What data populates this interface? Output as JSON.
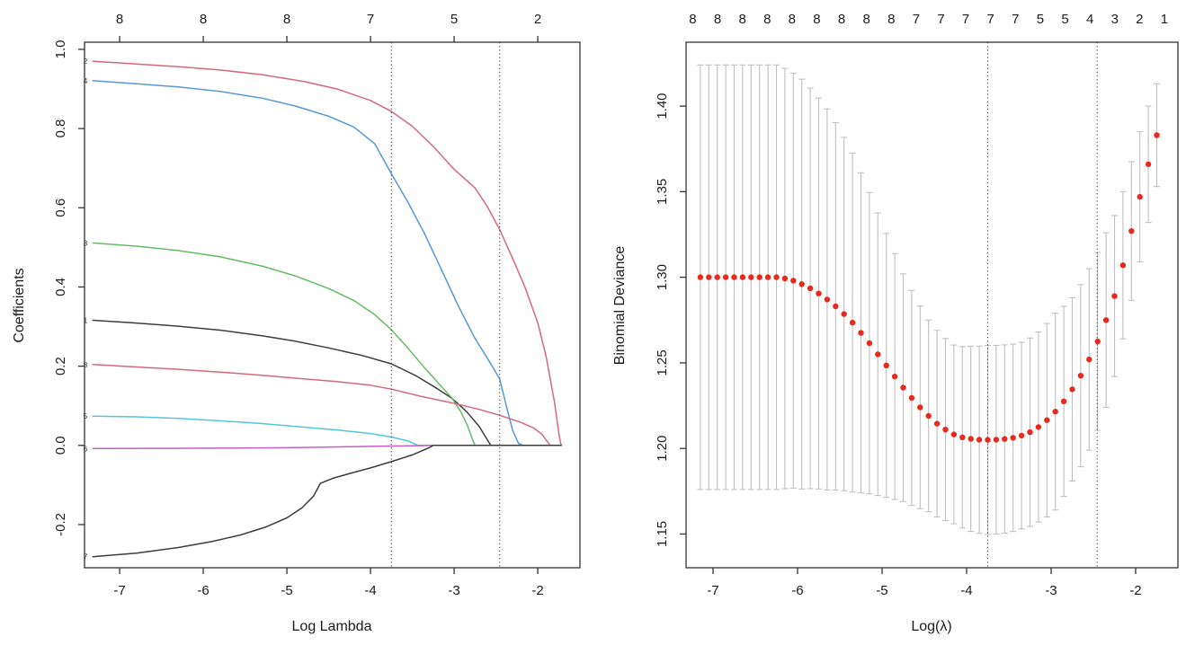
{
  "figure": {
    "background": "#ffffff",
    "description": "LASSO regression: coefficient profiles and cross-validation curve"
  },
  "chart_data": [
    {
      "type": "line",
      "name": "coefficient-paths",
      "xlabel": "Log Lambda",
      "ylabel": "Coefficients",
      "xlim": [
        -7.42,
        -1.495
      ],
      "ylim": [
        -0.309,
        1.018
      ],
      "x_ticks": [
        -7,
        -6,
        -5,
        -4,
        -3,
        -2
      ],
      "x_tick_labels": [
        "-7",
        "-6",
        "-5",
        "-4",
        "-3",
        "-2"
      ],
      "y_ticks": [
        1.0,
        0.8,
        0.6,
        0.4,
        0.2,
        0.0,
        -0.2
      ],
      "y_tick_labels": [
        "1.0",
        "0.8",
        "0.6",
        "0.4",
        "0.2",
        "0.0",
        "-0.2"
      ],
      "top_axis_labels": [
        "8",
        "8",
        "8",
        "7",
        "5",
        "2"
      ],
      "vlines": [
        -3.75,
        -2.455
      ],
      "vline_color": "#4a4a4a",
      "series": [
        {
          "label": "1",
          "color": "#3d3d3d",
          "points": [
            [
              -7.32,
              0.316
            ],
            [
              -6.8,
              0.309
            ],
            [
              -6.3,
              0.301
            ],
            [
              -5.8,
              0.291
            ],
            [
              -5.3,
              0.277
            ],
            [
              -4.9,
              0.263
            ],
            [
              -4.5,
              0.246
            ],
            [
              -4.1,
              0.227
            ],
            [
              -3.75,
              0.206
            ],
            [
              -3.45,
              0.175
            ],
            [
              -3.2,
              0.143
            ],
            [
              -3.02,
              0.118
            ],
            [
              -2.85,
              0.085
            ],
            [
              -2.7,
              0.048
            ],
            [
              -2.6,
              0.013
            ],
            [
              -2.56,
              0.0
            ],
            [
              -1.72,
              0.0
            ]
          ]
        },
        {
          "label": "2",
          "color": "#d4687e",
          "points": [
            [
              -7.32,
              0.97
            ],
            [
              -6.8,
              0.963
            ],
            [
              -6.3,
              0.956
            ],
            [
              -5.8,
              0.948
            ],
            [
              -5.3,
              0.936
            ],
            [
              -4.8,
              0.919
            ],
            [
              -4.4,
              0.9
            ],
            [
              -4.0,
              0.871
            ],
            [
              -3.75,
              0.843
            ],
            [
              -3.5,
              0.806
            ],
            [
              -3.25,
              0.755
            ],
            [
              -3.0,
              0.697
            ],
            [
              -2.75,
              0.65
            ],
            [
              -2.6,
              0.602
            ],
            [
              -2.455,
              0.545
            ],
            [
              -2.3,
              0.472
            ],
            [
              -2.15,
              0.398
            ],
            [
              -2.0,
              0.31
            ],
            [
              -1.9,
              0.225
            ],
            [
              -1.8,
              0.11
            ],
            [
              -1.74,
              0.02
            ],
            [
              -1.72,
              0.0
            ]
          ]
        },
        {
          "label": "3",
          "color": "#66bb66",
          "points": [
            [
              -7.32,
              0.511
            ],
            [
              -6.8,
              0.503
            ],
            [
              -6.3,
              0.492
            ],
            [
              -5.8,
              0.476
            ],
            [
              -5.3,
              0.453
            ],
            [
              -4.9,
              0.428
            ],
            [
              -4.5,
              0.396
            ],
            [
              -4.2,
              0.366
            ],
            [
              -3.95,
              0.33
            ],
            [
              -3.75,
              0.292
            ],
            [
              -3.55,
              0.245
            ],
            [
              -3.35,
              0.195
            ],
            [
              -3.15,
              0.148
            ],
            [
              -3.02,
              0.118
            ],
            [
              -2.92,
              0.085
            ],
            [
              -2.84,
              0.05
            ],
            [
              -2.78,
              0.015
            ],
            [
              -2.75,
              0.0
            ],
            [
              -1.72,
              0.0
            ]
          ]
        },
        {
          "label": "4",
          "color": "#5599d8",
          "points": [
            [
              -7.32,
              0.921
            ],
            [
              -6.8,
              0.913
            ],
            [
              -6.3,
              0.905
            ],
            [
              -5.8,
              0.894
            ],
            [
              -5.3,
              0.877
            ],
            [
              -4.9,
              0.857
            ],
            [
              -4.5,
              0.831
            ],
            [
              -4.2,
              0.804
            ],
            [
              -3.95,
              0.762
            ],
            [
              -3.75,
              0.686
            ],
            [
              -3.55,
              0.613
            ],
            [
              -3.35,
              0.533
            ],
            [
              -3.15,
              0.443
            ],
            [
              -2.95,
              0.352
            ],
            [
              -2.75,
              0.27
            ],
            [
              -2.55,
              0.202
            ],
            [
              -2.455,
              0.168
            ],
            [
              -2.38,
              0.103
            ],
            [
              -2.3,
              0.038
            ],
            [
              -2.23,
              0.005
            ],
            [
              -2.18,
              0.0
            ],
            [
              -1.72,
              0.0
            ]
          ]
        },
        {
          "label": "5",
          "color": "#55c6d8",
          "points": [
            [
              -7.32,
              0.074
            ],
            [
              -6.8,
              0.072
            ],
            [
              -6.3,
              0.068
            ],
            [
              -5.8,
              0.062
            ],
            [
              -5.3,
              0.055
            ],
            [
              -4.8,
              0.046
            ],
            [
              -4.4,
              0.039
            ],
            [
              -4.0,
              0.03
            ],
            [
              -3.75,
              0.021
            ],
            [
              -3.55,
              0.011
            ],
            [
              -3.43,
              0.0
            ],
            [
              -1.72,
              0.0
            ]
          ]
        },
        {
          "label": "6",
          "color": "#c45ec4",
          "points": [
            [
              -7.32,
              -0.008
            ],
            [
              -6.5,
              -0.0075
            ],
            [
              -5.8,
              -0.007
            ],
            [
              -5.0,
              -0.006
            ],
            [
              -4.4,
              -0.004
            ],
            [
              -3.9,
              -0.002
            ],
            [
              -3.5,
              -0.001
            ],
            [
              -3.25,
              0.0
            ],
            [
              -1.72,
              0.0
            ]
          ]
        },
        {
          "label": "8",
          "color": "#d4687e",
          "points": [
            [
              -7.32,
              0.204
            ],
            [
              -6.8,
              0.198
            ],
            [
              -6.3,
              0.192
            ],
            [
              -5.8,
              0.185
            ],
            [
              -5.3,
              0.177
            ],
            [
              -4.8,
              0.168
            ],
            [
              -4.4,
              0.161
            ],
            [
              -4.0,
              0.152
            ],
            [
              -3.75,
              0.142
            ],
            [
              -3.4,
              0.124
            ],
            [
              -3.0,
              0.106
            ],
            [
              -2.7,
              0.091
            ],
            [
              -2.455,
              0.076
            ],
            [
              -2.2,
              0.058
            ],
            [
              -2.05,
              0.044
            ],
            [
              -1.95,
              0.028
            ],
            [
              -1.88,
              0.008
            ],
            [
              -1.85,
              0.0
            ],
            [
              -1.72,
              0.0
            ]
          ]
        },
        {
          "label": "7",
          "color": "#3d3d3d",
          "points": [
            [
              -7.32,
              -0.281
            ],
            [
              -6.8,
              -0.272
            ],
            [
              -6.3,
              -0.258
            ],
            [
              -5.9,
              -0.243
            ],
            [
              -5.55,
              -0.226
            ],
            [
              -5.25,
              -0.206
            ],
            [
              -5.0,
              -0.183
            ],
            [
              -4.82,
              -0.158
            ],
            [
              -4.68,
              -0.128
            ],
            [
              -4.6,
              -0.096
            ],
            [
              -4.45,
              -0.083
            ],
            [
              -4.25,
              -0.071
            ],
            [
              -4.0,
              -0.057
            ],
            [
              -3.75,
              -0.041
            ],
            [
              -3.5,
              -0.024
            ],
            [
              -3.3,
              -0.006
            ],
            [
              -3.25,
              0.0
            ],
            [
              -1.72,
              0.0
            ]
          ]
        }
      ]
    },
    {
      "type": "scatter",
      "name": "cv-binomial-deviance",
      "xlabel": "Log(λ)",
      "ylabel": "Binomial Deviance",
      "xlim": [
        -7.319,
        -1.5
      ],
      "ylim": [
        1.1303,
        1.4373
      ],
      "x_ticks": [
        -7,
        -6,
        -5,
        -4,
        -3,
        -2
      ],
      "x_tick_labels": [
        "-7",
        "-6",
        "-5",
        "-4",
        "-3",
        "-2"
      ],
      "y_ticks": [
        1.15,
        1.2,
        1.25,
        1.3,
        1.35,
        1.4
      ],
      "y_tick_labels": [
        "1.15",
        "1.20",
        "1.25",
        "1.30",
        "1.35",
        "1.40"
      ],
      "top_axis_labels": [
        "8",
        "8",
        "8",
        "8",
        "8",
        "8",
        "8",
        "8",
        "8",
        "7",
        "7",
        "7",
        "7",
        "7",
        "5",
        "5",
        "4",
        "3",
        "2",
        "1"
      ],
      "top_axis_x_first": -7.24,
      "top_axis_x_last": -1.66,
      "vlines": [
        -3.75,
        -2.455
      ],
      "vline_color": "#4a4a4a",
      "point_color": "#e8291d",
      "errorbar_color": "#c0c0c0",
      "x_start": -7.15,
      "x_step": 0.1,
      "cvm": [
        1.3,
        1.3,
        1.3,
        1.3,
        1.3,
        1.3,
        1.3,
        1.3,
        1.3,
        1.3,
        1.2993,
        1.298,
        1.296,
        1.2935,
        1.2905,
        1.287,
        1.283,
        1.2785,
        1.2735,
        1.2675,
        1.2615,
        1.255,
        1.2485,
        1.242,
        1.2355,
        1.2295,
        1.224,
        1.219,
        1.2145,
        1.211,
        1.2082,
        1.2065,
        1.2056,
        1.2051,
        1.205,
        1.2051,
        1.2055,
        1.2062,
        1.2075,
        1.2095,
        1.2125,
        1.2165,
        1.2215,
        1.2275,
        1.2345,
        1.2425,
        1.252,
        1.2625,
        1.275,
        1.289,
        1.307,
        1.327,
        1.347,
        1.366,
        1.383
      ],
      "cvsd": [
        0.124,
        0.124,
        0.124,
        0.124,
        0.124,
        0.124,
        0.124,
        0.124,
        0.124,
        0.124,
        0.1228,
        0.1212,
        0.1197,
        0.117,
        0.1142,
        0.1113,
        0.1073,
        0.1032,
        0.099,
        0.0935,
        0.088,
        0.0825,
        0.0771,
        0.0718,
        0.0665,
        0.0628,
        0.0592,
        0.056,
        0.0545,
        0.0532,
        0.0522,
        0.053,
        0.0541,
        0.0547,
        0.0552,
        0.0551,
        0.055,
        0.0547,
        0.0545,
        0.055,
        0.0555,
        0.0565,
        0.0575,
        0.0555,
        0.0535,
        0.0532,
        0.053,
        0.052,
        0.051,
        0.047,
        0.043,
        0.0405,
        0.038,
        0.034,
        0.03
      ]
    }
  ]
}
